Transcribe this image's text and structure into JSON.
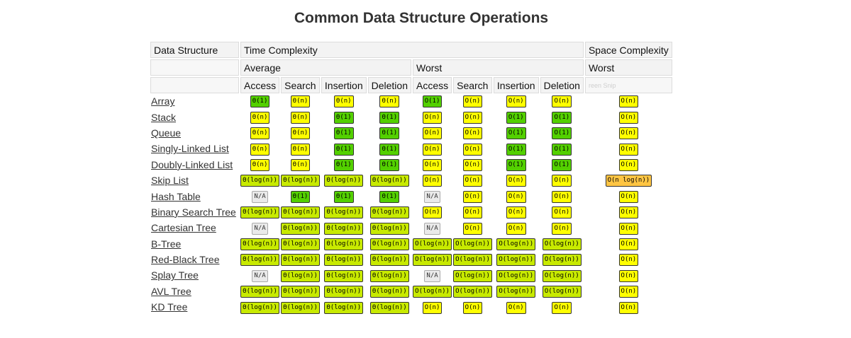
{
  "title": "Common Data Structure Operations",
  "headers": {
    "data_structure": "Data Structure",
    "time_complexity": "Time Complexity",
    "space_complexity": "Space Complexity",
    "average": "Average",
    "worst": "Worst",
    "space_worst": "Worst",
    "columns": [
      "Access",
      "Search",
      "Insertion",
      "Deletion",
      "Access",
      "Search",
      "Insertion",
      "Deletion"
    ],
    "faint_overlay": "reen Snip"
  },
  "colors": {
    "green": "#53d000",
    "yellow-green": "#c8ea00",
    "yellow": "#ffff00",
    "orange": "#ffc543",
    "gray": "#eaeaea"
  },
  "rows": [
    {
      "name": "Array",
      "cells": [
        [
          "Θ(1)",
          "green"
        ],
        [
          "Θ(n)",
          "yellow"
        ],
        [
          "Θ(n)",
          "yellow"
        ],
        [
          "Θ(n)",
          "yellow"
        ],
        [
          "O(1)",
          "green"
        ],
        [
          "O(n)",
          "yellow"
        ],
        [
          "O(n)",
          "yellow"
        ],
        [
          "O(n)",
          "yellow"
        ],
        [
          "O(n)",
          "yellow"
        ]
      ]
    },
    {
      "name": "Stack",
      "cells": [
        [
          "Θ(n)",
          "yellow"
        ],
        [
          "Θ(n)",
          "yellow"
        ],
        [
          "Θ(1)",
          "green"
        ],
        [
          "Θ(1)",
          "green"
        ],
        [
          "O(n)",
          "yellow"
        ],
        [
          "O(n)",
          "yellow"
        ],
        [
          "O(1)",
          "green"
        ],
        [
          "O(1)",
          "green"
        ],
        [
          "O(n)",
          "yellow"
        ]
      ]
    },
    {
      "name": "Queue",
      "cells": [
        [
          "Θ(n)",
          "yellow"
        ],
        [
          "Θ(n)",
          "yellow"
        ],
        [
          "Θ(1)",
          "green"
        ],
        [
          "Θ(1)",
          "green"
        ],
        [
          "O(n)",
          "yellow"
        ],
        [
          "O(n)",
          "yellow"
        ],
        [
          "O(1)",
          "green"
        ],
        [
          "O(1)",
          "green"
        ],
        [
          "O(n)",
          "yellow"
        ]
      ]
    },
    {
      "name": "Singly-Linked List",
      "cells": [
        [
          "Θ(n)",
          "yellow"
        ],
        [
          "Θ(n)",
          "yellow"
        ],
        [
          "Θ(1)",
          "green"
        ],
        [
          "Θ(1)",
          "green"
        ],
        [
          "O(n)",
          "yellow"
        ],
        [
          "O(n)",
          "yellow"
        ],
        [
          "O(1)",
          "green"
        ],
        [
          "O(1)",
          "green"
        ],
        [
          "O(n)",
          "yellow"
        ]
      ]
    },
    {
      "name": "Doubly-Linked List",
      "cells": [
        [
          "Θ(n)",
          "yellow"
        ],
        [
          "Θ(n)",
          "yellow"
        ],
        [
          "Θ(1)",
          "green"
        ],
        [
          "Θ(1)",
          "green"
        ],
        [
          "O(n)",
          "yellow"
        ],
        [
          "O(n)",
          "yellow"
        ],
        [
          "O(1)",
          "green"
        ],
        [
          "O(1)",
          "green"
        ],
        [
          "O(n)",
          "yellow"
        ]
      ]
    },
    {
      "name": "Skip List",
      "cells": [
        [
          "Θ(log(n))",
          "yellow-green"
        ],
        [
          "Θ(log(n))",
          "yellow-green"
        ],
        [
          "Θ(log(n))",
          "yellow-green"
        ],
        [
          "Θ(log(n))",
          "yellow-green"
        ],
        [
          "O(n)",
          "yellow"
        ],
        [
          "O(n)",
          "yellow"
        ],
        [
          "O(n)",
          "yellow"
        ],
        [
          "O(n)",
          "yellow"
        ],
        [
          "O(n log(n))",
          "orange"
        ]
      ]
    },
    {
      "name": "Hash Table",
      "cells": [
        [
          "N/A",
          "gray"
        ],
        [
          "Θ(1)",
          "green"
        ],
        [
          "Θ(1)",
          "green"
        ],
        [
          "Θ(1)",
          "green"
        ],
        [
          "N/A",
          "gray"
        ],
        [
          "O(n)",
          "yellow"
        ],
        [
          "O(n)",
          "yellow"
        ],
        [
          "O(n)",
          "yellow"
        ],
        [
          "O(n)",
          "yellow"
        ]
      ]
    },
    {
      "name": "Binary Search Tree",
      "cells": [
        [
          "Θ(log(n))",
          "yellow-green"
        ],
        [
          "Θ(log(n))",
          "yellow-green"
        ],
        [
          "Θ(log(n))",
          "yellow-green"
        ],
        [
          "Θ(log(n))",
          "yellow-green"
        ],
        [
          "O(n)",
          "yellow"
        ],
        [
          "O(n)",
          "yellow"
        ],
        [
          "O(n)",
          "yellow"
        ],
        [
          "O(n)",
          "yellow"
        ],
        [
          "O(n)",
          "yellow"
        ]
      ]
    },
    {
      "name": "Cartesian Tree",
      "cells": [
        [
          "N/A",
          "gray"
        ],
        [
          "Θ(log(n))",
          "yellow-green"
        ],
        [
          "Θ(log(n))",
          "yellow-green"
        ],
        [
          "Θ(log(n))",
          "yellow-green"
        ],
        [
          "N/A",
          "gray"
        ],
        [
          "O(n)",
          "yellow"
        ],
        [
          "O(n)",
          "yellow"
        ],
        [
          "O(n)",
          "yellow"
        ],
        [
          "O(n)",
          "yellow"
        ]
      ]
    },
    {
      "name": "B-Tree",
      "cells": [
        [
          "Θ(log(n))",
          "yellow-green"
        ],
        [
          "Θ(log(n))",
          "yellow-green"
        ],
        [
          "Θ(log(n))",
          "yellow-green"
        ],
        [
          "Θ(log(n))",
          "yellow-green"
        ],
        [
          "O(log(n))",
          "yellow-green"
        ],
        [
          "O(log(n))",
          "yellow-green"
        ],
        [
          "O(log(n))",
          "yellow-green"
        ],
        [
          "O(log(n))",
          "yellow-green"
        ],
        [
          "O(n)",
          "yellow"
        ]
      ]
    },
    {
      "name": "Red-Black Tree",
      "cells": [
        [
          "Θ(log(n))",
          "yellow-green"
        ],
        [
          "Θ(log(n))",
          "yellow-green"
        ],
        [
          "Θ(log(n))",
          "yellow-green"
        ],
        [
          "Θ(log(n))",
          "yellow-green"
        ],
        [
          "O(log(n))",
          "yellow-green"
        ],
        [
          "O(log(n))",
          "yellow-green"
        ],
        [
          "O(log(n))",
          "yellow-green"
        ],
        [
          "O(log(n))",
          "yellow-green"
        ],
        [
          "O(n)",
          "yellow"
        ]
      ]
    },
    {
      "name": "Splay Tree",
      "cells": [
        [
          "N/A",
          "gray"
        ],
        [
          "Θ(log(n))",
          "yellow-green"
        ],
        [
          "Θ(log(n))",
          "yellow-green"
        ],
        [
          "Θ(log(n))",
          "yellow-green"
        ],
        [
          "N/A",
          "gray"
        ],
        [
          "O(log(n))",
          "yellow-green"
        ],
        [
          "O(log(n))",
          "yellow-green"
        ],
        [
          "O(log(n))",
          "yellow-green"
        ],
        [
          "O(n)",
          "yellow"
        ]
      ]
    },
    {
      "name": "AVL Tree",
      "cells": [
        [
          "Θ(log(n))",
          "yellow-green"
        ],
        [
          "Θ(log(n))",
          "yellow-green"
        ],
        [
          "Θ(log(n))",
          "yellow-green"
        ],
        [
          "Θ(log(n))",
          "yellow-green"
        ],
        [
          "O(log(n))",
          "yellow-green"
        ],
        [
          "O(log(n))",
          "yellow-green"
        ],
        [
          "O(log(n))",
          "yellow-green"
        ],
        [
          "O(log(n))",
          "yellow-green"
        ],
        [
          "O(n)",
          "yellow"
        ]
      ]
    },
    {
      "name": "KD Tree",
      "cells": [
        [
          "Θ(log(n))",
          "yellow-green"
        ],
        [
          "Θ(log(n))",
          "yellow-green"
        ],
        [
          "Θ(log(n))",
          "yellow-green"
        ],
        [
          "Θ(log(n))",
          "yellow-green"
        ],
        [
          "O(n)",
          "yellow"
        ],
        [
          "O(n)",
          "yellow"
        ],
        [
          "O(n)",
          "yellow"
        ],
        [
          "O(n)",
          "yellow"
        ],
        [
          "O(n)",
          "yellow"
        ]
      ]
    }
  ]
}
